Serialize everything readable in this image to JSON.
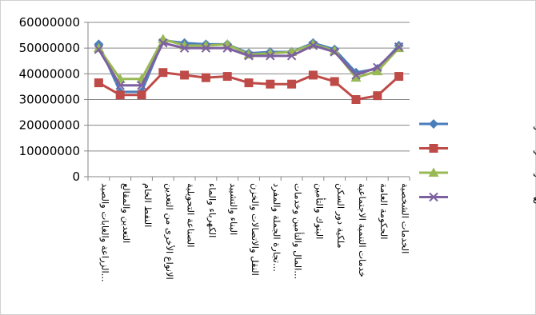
{
  "chart_data": {
    "type": "line",
    "title": "",
    "xlabel": "",
    "ylabel": "",
    "ylim": [
      0,
      60000000
    ],
    "yticks": [
      "0",
      "10000000",
      "20000000",
      "30000000",
      "40000000",
      "50000000",
      "60000000"
    ],
    "grid": true,
    "legend_position": "right",
    "categories": [
      "الزراعة والغابات والصيد...",
      "التعدين والمقالع",
      "النفط الخام",
      "الانواع الأخرى من التعدين",
      "الصناعة التحويلية",
      "الكهرباء والماء",
      "البناء والتشييد",
      "النقل والاتصالات والخزن",
      "تجارة الجملة والمفرد...",
      "المال والتأمين وخدمات...",
      "البنوك والتأمين",
      "ملكية دور السكن",
      "خدمات التنمية الاجتماعية",
      "الحكومة العامة",
      "الخدمات الشخصية"
    ],
    "series": [
      {
        "name": "الفصل الاول",
        "color": "#4a7ebb",
        "marker": "diamond",
        "values": [
          51500000,
          33000000,
          33000000,
          53000000,
          52000000,
          51500000,
          51500000,
          48000000,
          48500000,
          48500000,
          52000000,
          49500000,
          40500000,
          42000000,
          51000000
        ]
      },
      {
        "name": "الفصل الثاني",
        "color": "#be4b48",
        "marker": "square",
        "values": [
          36500000,
          31800000,
          31800000,
          40500000,
          39500000,
          38500000,
          39000000,
          36500000,
          36000000,
          36000000,
          39500000,
          37000000,
          30000000,
          31500000,
          39000000
        ]
      },
      {
        "name": "الفصل الثالث",
        "color": "#98b954",
        "marker": "triangle",
        "values": [
          50000000,
          38000000,
          38000000,
          53500000,
          51000000,
          51000000,
          51500000,
          47500000,
          48000000,
          48500000,
          51500000,
          49000000,
          38500000,
          41000000,
          50000000
        ]
      },
      {
        "name": "الفصل الرابع",
        "color": "#7d60a0",
        "marker": "x",
        "values": [
          49500000,
          35500000,
          35500000,
          52000000,
          50000000,
          50000000,
          50000000,
          47000000,
          47000000,
          47000000,
          51000000,
          48500000,
          39500000,
          42500000,
          50500000
        ]
      }
    ]
  }
}
